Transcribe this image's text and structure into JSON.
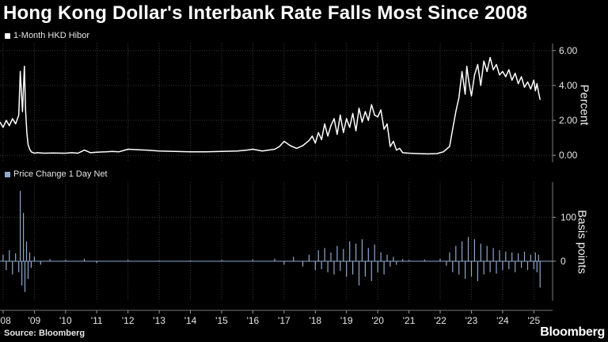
{
  "title": "Hong Kong Dollar's Interbank Rate Falls Most Since 2008",
  "source": "Source: Bloomberg",
  "brand": "Bloomberg",
  "colors": {
    "background": "#000000",
    "series1": "#ffffff",
    "series2": "#8fa8cc",
    "grid": "#3c3c3c"
  },
  "chart_data": [
    {
      "type": "line",
      "title": "Hong Kong Dollar's Interbank Rate Falls Most Since 2008",
      "legend": "1-Month HKD Hibor",
      "ylabel": "Percent",
      "ylim": [
        -0.4,
        6.4
      ],
      "yticks": [
        0,
        2,
        4,
        6
      ],
      "ytick_labels": [
        "0.00",
        "2.00",
        "4.00",
        "6.00"
      ],
      "xlim": [
        2007.9,
        2025.6
      ],
      "x_ticks": [
        2008,
        2009,
        2010,
        2011,
        2012,
        2013,
        2014,
        2015,
        2016,
        2017,
        2018,
        2019,
        2020,
        2021,
        2022,
        2023,
        2024,
        2025
      ],
      "x_tick_labels": [
        "'08",
        "'09",
        "'10",
        "'11",
        "'12",
        "'13",
        "'14",
        "'15",
        "'16",
        "'17",
        "'18",
        "'19",
        "'20",
        "'21",
        "'22",
        "'23",
        "'24",
        "'25"
      ],
      "grid": true,
      "series": [
        {
          "name": "1-Month HKD Hibor",
          "x": [
            2007.9,
            2008.0,
            2008.1,
            2008.2,
            2008.3,
            2008.4,
            2008.5,
            2008.55,
            2008.62,
            2008.68,
            2008.72,
            2008.76,
            2008.8,
            2008.85,
            2008.9,
            2009.0,
            2009.1,
            2009.3,
            2009.6,
            2009.9,
            2010.0,
            2010.2,
            2010.4,
            2010.6,
            2010.8,
            2011.0,
            2011.3,
            2011.5,
            2011.7,
            2011.9,
            2012.0,
            2012.3,
            2012.6,
            2013.0,
            2013.5,
            2014.0,
            2014.5,
            2015.0,
            2015.5,
            2015.8,
            2016.0,
            2016.3,
            2016.5,
            2016.7,
            2016.85,
            2017.0,
            2017.2,
            2017.4,
            2017.6,
            2017.7,
            2017.8,
            2017.9,
            2018.0,
            2018.1,
            2018.2,
            2018.3,
            2018.4,
            2018.5,
            2018.6,
            2018.7,
            2018.8,
            2018.9,
            2019.0,
            2019.1,
            2019.2,
            2019.3,
            2019.4,
            2019.5,
            2019.6,
            2019.7,
            2019.8,
            2019.9,
            2020.0,
            2020.1,
            2020.2,
            2020.3,
            2020.4,
            2020.5,
            2020.6,
            2020.7,
            2020.8,
            2021.0,
            2021.3,
            2021.6,
            2021.9,
            2022.0,
            2022.1,
            2022.2,
            2022.3,
            2022.4,
            2022.5,
            2022.6,
            2022.7,
            2022.8,
            2022.85,
            2022.92,
            2023.0,
            2023.1,
            2023.2,
            2023.3,
            2023.4,
            2023.5,
            2023.6,
            2023.7,
            2023.8,
            2023.9,
            2024.0,
            2024.1,
            2024.2,
            2024.3,
            2024.4,
            2024.5,
            2024.6,
            2024.7,
            2024.8,
            2024.9,
            2025.0,
            2025.05,
            2025.1,
            2025.15,
            2025.2
          ],
          "values": [
            1.9,
            1.6,
            2.0,
            1.7,
            2.1,
            1.8,
            2.3,
            4.8,
            2.5,
            5.1,
            2.6,
            1.3,
            0.6,
            0.35,
            0.2,
            0.12,
            0.15,
            0.12,
            0.13,
            0.12,
            0.12,
            0.15,
            0.12,
            0.3,
            0.15,
            0.18,
            0.2,
            0.22,
            0.2,
            0.3,
            0.35,
            0.32,
            0.3,
            0.25,
            0.22,
            0.2,
            0.2,
            0.22,
            0.25,
            0.3,
            0.35,
            0.25,
            0.3,
            0.35,
            0.5,
            0.8,
            0.55,
            0.4,
            0.55,
            0.7,
            0.85,
            1.1,
            0.7,
            1.3,
            0.9,
            1.8,
            1.1,
            1.7,
            2.1,
            1.2,
            2.3,
            1.3,
            2.1,
            1.6,
            2.4,
            1.4,
            2.7,
            1.9,
            2.5,
            2.0,
            2.9,
            2.3,
            2.2,
            2.6,
            1.5,
            1.8,
            0.5,
            0.8,
            0.3,
            0.4,
            0.15,
            0.12,
            0.1,
            0.08,
            0.1,
            0.15,
            0.2,
            0.35,
            0.5,
            1.5,
            2.5,
            3.3,
            4.8,
            3.5,
            5.1,
            4.2,
            3.4,
            4.6,
            5.2,
            4.0,
            5.4,
            4.8,
            5.6,
            4.9,
            5.2,
            4.6,
            4.8,
            4.5,
            4.9,
            4.3,
            4.7,
            4.1,
            4.5,
            3.9,
            4.2,
            3.8,
            4.3,
            3.7,
            4.1,
            3.6,
            3.2
          ]
        }
      ]
    },
    {
      "type": "bar",
      "legend": "Price Change 1 Day Net",
      "ylabel": "Basis points",
      "ylim": [
        -90,
        180
      ],
      "yticks": [
        0,
        100
      ],
      "ytick_labels": [
        "0",
        "100"
      ],
      "xlim": [
        2007.9,
        2025.6
      ],
      "x_ticks": [
        2008,
        2009,
        2010,
        2011,
        2012,
        2013,
        2014,
        2015,
        2016,
        2017,
        2018,
        2019,
        2020,
        2021,
        2022,
        2023,
        2024,
        2025
      ],
      "x_tick_labels": [
        "'08",
        "'09",
        "'10",
        "'11",
        "'12",
        "'13",
        "'14",
        "'15",
        "'16",
        "'17",
        "'18",
        "'19",
        "'20",
        "'21",
        "'22",
        "'23",
        "'24",
        "'25"
      ],
      "grid": true,
      "series": [
        {
          "name": "Price Change 1 Day Net",
          "x": [
            2008.0,
            2008.1,
            2008.2,
            2008.3,
            2008.4,
            2008.5,
            2008.55,
            2008.6,
            2008.65,
            2008.7,
            2008.75,
            2008.8,
            2008.85,
            2008.9,
            2009.0,
            2009.2,
            2009.5,
            2010.0,
            2010.6,
            2011.0,
            2012.0,
            2013.0,
            2014.0,
            2015.0,
            2016.0,
            2016.7,
            2017.0,
            2017.3,
            2017.6,
            2017.8,
            2018.0,
            2018.1,
            2018.2,
            2018.3,
            2018.4,
            2018.5,
            2018.6,
            2018.7,
            2018.8,
            2018.9,
            2019.0,
            2019.1,
            2019.2,
            2019.3,
            2019.4,
            2019.5,
            2019.6,
            2019.7,
            2019.8,
            2019.9,
            2020.0,
            2020.1,
            2020.2,
            2020.3,
            2020.4,
            2020.5,
            2020.6,
            2020.8,
            2021.0,
            2021.5,
            2022.0,
            2022.2,
            2022.3,
            2022.4,
            2022.5,
            2022.6,
            2022.7,
            2022.8,
            2022.9,
            2023.0,
            2023.1,
            2023.2,
            2023.3,
            2023.4,
            2023.5,
            2023.6,
            2023.7,
            2023.8,
            2023.9,
            2024.0,
            2024.1,
            2024.2,
            2024.3,
            2024.4,
            2024.5,
            2024.6,
            2024.7,
            2024.8,
            2024.9,
            2025.0,
            2025.05,
            2025.1,
            2025.15,
            2025.2
          ],
          "values": [
            15,
            -20,
            25,
            -30,
            18,
            -25,
            160,
            -55,
            110,
            -70,
            45,
            -40,
            20,
            -15,
            10,
            -8,
            5,
            3,
            6,
            -4,
            3,
            2,
            2,
            3,
            4,
            6,
            -8,
            10,
            -12,
            15,
            -20,
            25,
            -18,
            30,
            -25,
            20,
            -30,
            35,
            -22,
            28,
            -35,
            45,
            -30,
            40,
            -55,
            50,
            -35,
            30,
            -45,
            38,
            -25,
            20,
            -30,
            15,
            -12,
            10,
            -8,
            5,
            3,
            4,
            6,
            -10,
            20,
            -25,
            35,
            -30,
            45,
            -40,
            55,
            -35,
            50,
            -45,
            40,
            -30,
            35,
            -25,
            30,
            -28,
            25,
            -20,
            22,
            -18,
            20,
            -25,
            18,
            -15,
            22,
            -20,
            15,
            -18,
            20,
            -25,
            15,
            -60
          ]
        }
      ]
    }
  ]
}
